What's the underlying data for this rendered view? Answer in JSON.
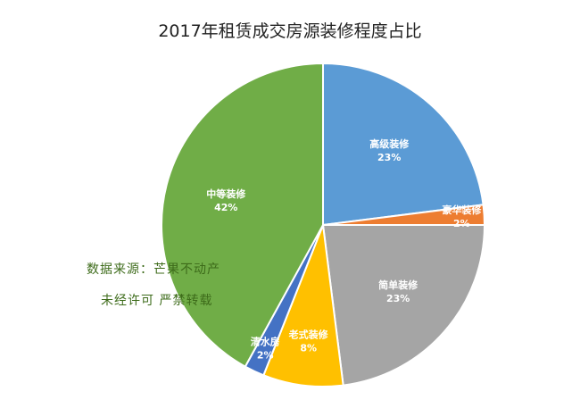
{
  "chart_data": {
    "type": "pie",
    "title": "2017年租赁成交房源装修程度占比",
    "slices": [
      {
        "label": "高级装修",
        "value": 23,
        "display": "23%",
        "color": "#5b9bd5"
      },
      {
        "label": "豪华装修",
        "value": 2,
        "display": "2%",
        "color": "#ed7d31"
      },
      {
        "label": "简单装修",
        "value": 23,
        "display": "23%",
        "color": "#a5a5a5"
      },
      {
        "label": "老式装修",
        "value": 8,
        "display": "8%",
        "color": "#ffc000"
      },
      {
        "label": "清水房",
        "value": 2,
        "display": "2%",
        "color": "#4472c4"
      },
      {
        "label": "中等装修",
        "value": 42,
        "display": "42%",
        "color": "#70ad47"
      }
    ],
    "legend": "none",
    "labels_on_slices": true
  },
  "watermark": {
    "line1": "数据来源：芒果不动产",
    "line2": "未经许可  严禁转载"
  }
}
